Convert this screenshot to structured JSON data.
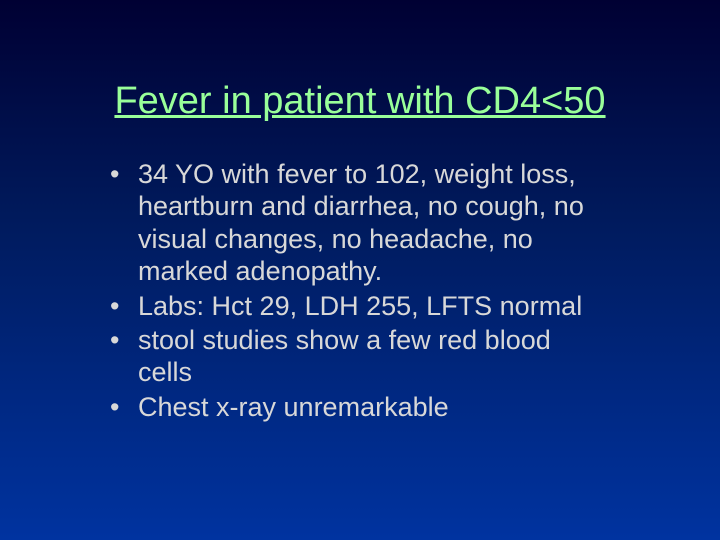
{
  "slide": {
    "title": "Fever in patient with CD4<50",
    "bullets": [
      "34 YO with fever to 102, weight loss, heartburn and diarrhea, no cough, no visual changes, no headache, no marked adenopathy.",
      "Labs: Hct 29, LDH 255, LFTS normal",
      "stool studies show a few red blood cells",
      "Chest x-ray unremarkable"
    ],
    "colors": {
      "title_color": "#99ff99",
      "text_color": "#d8d8d8",
      "bg_top": "#000033",
      "bg_mid": "#001a5c",
      "bg_bottom": "#0033a0"
    },
    "typography": {
      "title_fontsize": 38,
      "body_fontsize": 27,
      "font_family": "Arial"
    }
  }
}
